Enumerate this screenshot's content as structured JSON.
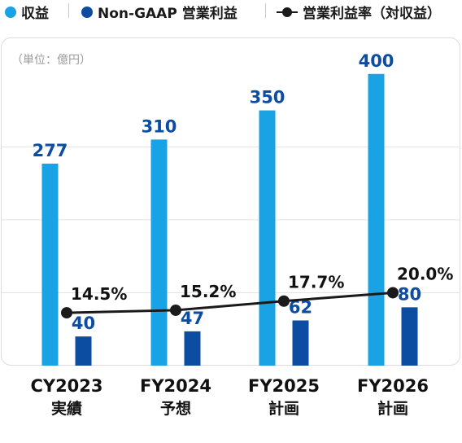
{
  "legend": {
    "revenue": "収益",
    "op": "Non-GAAP 営業利益",
    "margin": "営業利益率（対収益）"
  },
  "colors": {
    "revenue": "#1aa3e4",
    "op": "#0c4da2",
    "line": "#1a1a1a",
    "grid": "#e3e3e3",
    "frame": "#dcdcdc"
  },
  "chart_data": {
    "type": "bar",
    "unit_label": "（単位：億円）",
    "categories": [
      [
        "CY2023",
        "実績"
      ],
      [
        "FY2024",
        "予想"
      ],
      [
        "FY2025",
        "計画"
      ],
      [
        "FY2026",
        "計画"
      ]
    ],
    "series": [
      {
        "name": "収益",
        "type": "bar",
        "values": [
          277,
          310,
          350,
          400
        ]
      },
      {
        "name": "Non-GAAP 営業利益",
        "type": "bar",
        "values": [
          40,
          47,
          62,
          80
        ]
      },
      {
        "name": "営業利益率（対収益）",
        "type": "line",
        "values": [
          14.5,
          15.2,
          17.7,
          20.0
        ],
        "labels": [
          "14.5%",
          "15.2%",
          "17.7%",
          "20.0%"
        ]
      }
    ],
    "ylim": [
      0,
      450
    ],
    "line_ylim": [
      0,
      90
    ],
    "grid": true
  }
}
